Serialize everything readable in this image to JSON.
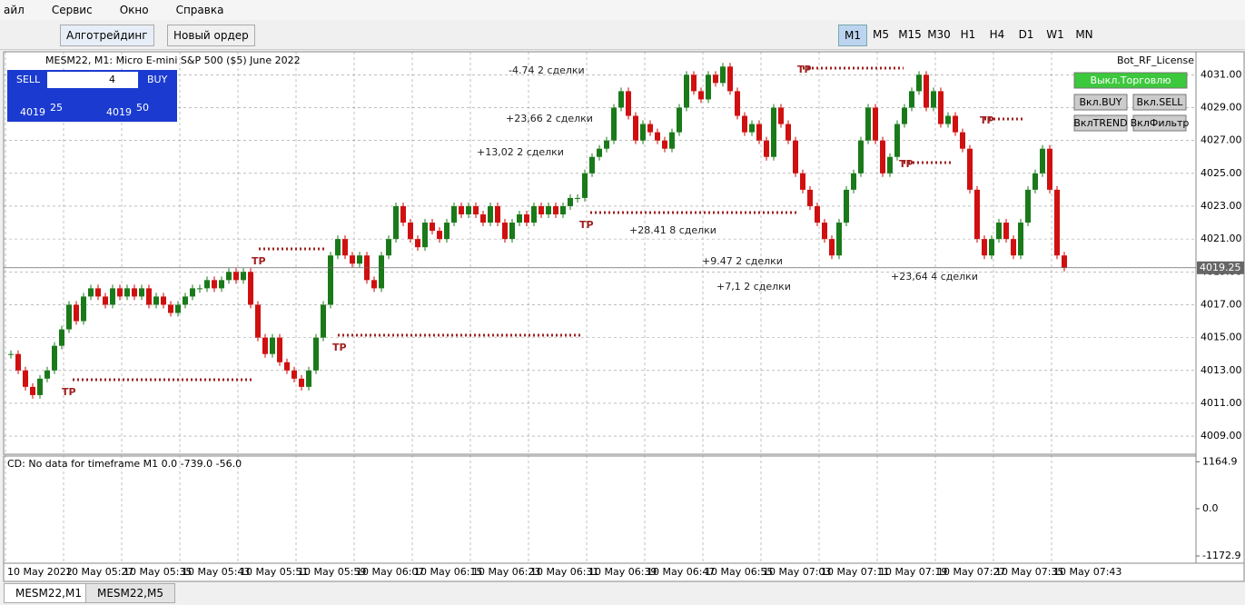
{
  "menu": [
    "айл",
    "Сервис",
    "Окно",
    "Справка"
  ],
  "toolbar": {
    "algo": "Алготрейдинг",
    "new_order": "Новый ордер",
    "timeframes": [
      "M1",
      "M5",
      "M15",
      "M30",
      "H1",
      "H4",
      "D1",
      "W1",
      "MN"
    ]
  },
  "chart": {
    "title": "MESM22, M1:  Micro E-mini S&P 500 ($5) June 2022",
    "license": "Bot_RF_License",
    "trade_panel": {
      "sell": "SELL",
      "buy": "BUY",
      "lots": "4",
      "bid_big": "4019",
      "bid_small": "25",
      "ask_big": "4019",
      "ask_small": "50"
    },
    "bot_buttons": [
      "Выкл.Торговлю",
      "Вкл.BUY",
      "Вкл.SELL",
      "ВклTREND",
      "ВклФильтр"
    ],
    "ylim": [
      4007.9,
      4032.4
    ],
    "yticks": [
      {
        "value": 4009,
        "label": "4009.00"
      },
      {
        "value": 4011,
        "label": "4011.00"
      },
      {
        "value": 4013,
        "label": "4013.00"
      },
      {
        "value": 4015,
        "label": "4015.00"
      },
      {
        "value": 4017,
        "label": "4017.00"
      },
      {
        "value": 4019,
        "label": "4019.00"
      },
      {
        "value": 4021,
        "label": "4021.00"
      },
      {
        "value": 4023,
        "label": "4023.00"
      },
      {
        "value": 4025,
        "label": "4025.00"
      },
      {
        "value": 4027,
        "label": "4027.00"
      },
      {
        "value": 4029,
        "label": "4029.00"
      },
      {
        "value": 4031,
        "label": "4031.00"
      }
    ],
    "last_price": {
      "value": 4019.25,
      "label": "4019.25"
    },
    "closes": [
      4014,
      4013,
      4012,
      4011.5,
      4012.5,
      4013,
      4014.5,
      4015.5,
      4017,
      4016,
      4017.5,
      4018,
      4017.5,
      4017,
      4018,
      4017.5,
      4018,
      4017.5,
      4018,
      4017,
      4017.5,
      4017,
      4016.5,
      4017,
      4017.5,
      4018,
      4018,
      4018.5,
      4018,
      4018.5,
      4019,
      4018.5,
      4019,
      4017,
      4015,
      4014,
      4015,
      4013.5,
      4013,
      4012.5,
      4012,
      4013,
      4015,
      4017,
      4020,
      4021,
      4020,
      4019.5,
      4020,
      4018.5,
      4018,
      4020,
      4021,
      4023,
      4022,
      4021,
      4020.5,
      4022,
      4021.5,
      4021,
      4022,
      4023,
      4022.5,
      4023,
      4022.5,
      4022,
      4023,
      4022,
      4021,
      4022,
      4022.5,
      4022,
      4023,
      4022.5,
      4023,
      4022.5,
      4023,
      4023.5,
      4023.5,
      4025,
      4026,
      4026.5,
      4027,
      4029,
      4030,
      4028.5,
      4027,
      4028,
      4027.5,
      4027,
      4026.5,
      4027.5,
      4029,
      4031,
      4030,
      4029.5,
      4031,
      4030.5,
      4031.5,
      4030,
      4028.5,
      4027.5,
      4028,
      4027,
      4026,
      4029,
      4028,
      4027,
      4025,
      4024,
      4023,
      4022,
      4021,
      4020,
      4022,
      4024,
      4025,
      4027,
      4029,
      4027,
      4025,
      4026,
      4028,
      4029,
      4030,
      4031,
      4029,
      4030,
      4028,
      4028.5,
      4027.5,
      4026.5,
      4024,
      4021,
      4020,
      4021,
      4022,
      4021,
      4020,
      4022,
      4024,
      4025,
      4026.5,
      4024,
      4020,
      4019.25
    ],
    "deals": [
      "-4.74  2 сделки",
      "+23,66  2 сделки",
      "+13,02  2 сделки",
      "+28.41  8 сделки",
      "+9.47  2 сделки",
      "+7,1  2 сделки",
      "+23,64  4 сделки"
    ],
    "tp": [
      "TP",
      "TP",
      "TP",
      "TP",
      "TP",
      "TP",
      "TP"
    ],
    "time_labels": [
      "10 May 2022",
      "10 May 05:27",
      "10 May 05:35",
      "10 May 05:43",
      "10 May 05:51",
      "10 May 05:59",
      "10 May 06:07",
      "10 May 06:15",
      "10 May 06:23",
      "10 May 06:31",
      "10 May 06:39",
      "10 May 06:47",
      "10 May 06:55",
      "10 May 07:03",
      "10 May 07:11",
      "10 May 07:19",
      "10 May 07:27",
      "10 May 07:35",
      "10 May 07:43"
    ],
    "cd_label": "CD: No data for timeframe M1 0.0 -739.0 -56.0",
    "cd_ticks": [
      {
        "value": 1164.9,
        "label": "1164.9"
      },
      {
        "value": 0,
        "label": "0.0"
      },
      {
        "value": -1172.9,
        "label": "-1172.9"
      }
    ]
  },
  "tabs": [
    "MESM22,M1",
    "MESM22,M5"
  ]
}
